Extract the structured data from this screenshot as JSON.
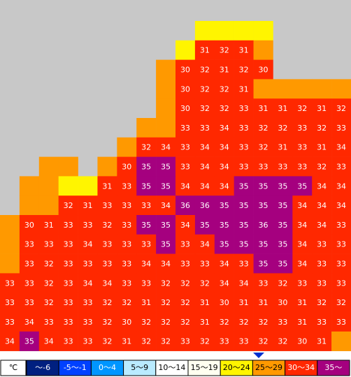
{
  "map": {
    "values": [
      [
        null,
        null,
        null,
        null,
        null,
        null,
        null,
        null,
        null,
        null,
        null,
        null,
        null,
        null,
        null,
        null,
        null,
        null
      ],
      [
        null,
        null,
        null,
        null,
        null,
        null,
        null,
        null,
        null,
        null,
        31,
        32,
        31,
        null,
        null,
        null,
        null,
        null
      ],
      [
        null,
        null,
        null,
        null,
        null,
        null,
        null,
        null,
        null,
        30,
        32,
        31,
        32,
        30,
        null,
        null,
        null,
        null
      ],
      [
        null,
        null,
        null,
        null,
        null,
        null,
        null,
        null,
        null,
        30,
        32,
        32,
        31,
        null,
        null,
        null,
        null,
        null
      ],
      [
        null,
        null,
        null,
        null,
        null,
        null,
        null,
        null,
        null,
        30,
        32,
        32,
        33,
        31,
        31,
        32,
        31,
        32
      ],
      [
        null,
        null,
        null,
        null,
        null,
        null,
        null,
        null,
        null,
        33,
        33,
        34,
        33,
        32,
        32,
        33,
        32,
        33
      ],
      [
        null,
        null,
        null,
        null,
        null,
        null,
        null,
        32,
        34,
        33,
        34,
        34,
        33,
        32,
        31,
        33,
        31,
        34
      ],
      [
        null,
        null,
        null,
        null,
        null,
        null,
        30,
        35,
        35,
        33,
        34,
        34,
        33,
        33,
        33,
        33,
        32,
        33
      ],
      [
        null,
        null,
        null,
        null,
        null,
        31,
        33,
        35,
        35,
        34,
        34,
        34,
        35,
        35,
        35,
        35,
        34,
        34
      ],
      [
        null,
        null,
        null,
        32,
        31,
        33,
        33,
        33,
        34,
        36,
        36,
        35,
        35,
        35,
        35,
        34,
        34,
        34
      ],
      [
        null,
        30,
        31,
        33,
        33,
        32,
        33,
        35,
        35,
        34,
        35,
        35,
        35,
        36,
        35,
        34,
        34,
        33
      ],
      [
        null,
        33,
        33,
        33,
        34,
        33,
        33,
        33,
        35,
        33,
        34,
        35,
        35,
        35,
        35,
        34,
        33,
        33
      ],
      [
        null,
        33,
        32,
        33,
        33,
        33,
        33,
        34,
        34,
        33,
        33,
        34,
        33,
        35,
        35,
        34,
        33,
        33
      ],
      [
        33,
        33,
        32,
        33,
        34,
        34,
        33,
        33,
        32,
        32,
        32,
        34,
        34,
        33,
        32,
        33,
        33,
        33
      ],
      [
        33,
        33,
        32,
        33,
        33,
        32,
        32,
        31,
        32,
        32,
        31,
        30,
        31,
        31,
        30,
        31,
        32,
        32
      ],
      [
        33,
        34,
        33,
        33,
        33,
        32,
        30,
        32,
        32,
        32,
        31,
        32,
        32,
        32,
        33,
        31,
        33,
        33
      ],
      [
        34,
        35,
        34,
        33,
        33,
        32,
        31,
        32,
        32,
        33,
        32,
        33,
        33,
        32,
        32,
        30,
        31,
        null
      ]
    ],
    "fills": [
      [
        null,
        null,
        null,
        null,
        null,
        null,
        null,
        null,
        null,
        null,
        "#fff500",
        "#fff500",
        "#fff500",
        "#fff500",
        null,
        null,
        null,
        null
      ],
      [
        null,
        null,
        null,
        null,
        null,
        null,
        null,
        null,
        null,
        "#fff500",
        "#ff2800",
        "#ff2800",
        "#ff2800",
        "#ff9900",
        null,
        null,
        null,
        null
      ],
      [
        null,
        null,
        null,
        null,
        null,
        null,
        null,
        null,
        "#ff9900",
        "#ff2800",
        "#ff2800",
        "#ff2800",
        "#ff2800",
        "#ff2800",
        null,
        null,
        null,
        null
      ],
      [
        null,
        null,
        null,
        null,
        null,
        null,
        null,
        null,
        "#ff9900",
        "#ff2800",
        "#ff2800",
        "#ff2800",
        "#ff2800",
        "#ff9900",
        "#ff9900",
        "#ff9900",
        "#ff9900",
        "#ff9900"
      ],
      [
        null,
        null,
        null,
        null,
        null,
        null,
        null,
        null,
        "#ff9900",
        "#ff2800",
        "#ff2800",
        "#ff2800",
        "#ff2800",
        "#ff2800",
        "#ff2800",
        "#ff2800",
        "#ff2800",
        "#ff2800"
      ],
      [
        null,
        null,
        null,
        null,
        null,
        null,
        null,
        "#ff9900",
        "#ff9900",
        "#ff2800",
        "#ff2800",
        "#ff2800",
        "#ff2800",
        "#ff2800",
        "#ff2800",
        "#ff2800",
        "#ff2800",
        "#ff2800"
      ],
      [
        null,
        null,
        null,
        null,
        null,
        null,
        "#ff9900",
        "#ff2800",
        "#ff2800",
        "#ff2800",
        "#ff2800",
        "#ff2800",
        "#ff2800",
        "#ff2800",
        "#ff2800",
        "#ff2800",
        "#ff2800",
        "#ff2800"
      ],
      [
        null,
        null,
        "#ff9900",
        "#ff9900",
        null,
        "#ff9900",
        "#ff2800",
        "#a5007f",
        "#a5007f",
        "#ff2800",
        "#ff2800",
        "#ff2800",
        "#ff2800",
        "#ff2800",
        "#ff2800",
        "#ff2800",
        "#ff2800",
        "#ff2800"
      ],
      [
        null,
        "#ff9900",
        "#ff9900",
        "#fff500",
        "#fff500",
        "#ff2800",
        "#ff2800",
        "#a5007f",
        "#a5007f",
        "#ff2800",
        "#ff2800",
        "#ff2800",
        "#a5007f",
        "#a5007f",
        "#a5007f",
        "#a5007f",
        "#ff2800",
        "#ff2800"
      ],
      [
        null,
        "#ff9900",
        "#ff9900",
        "#ff2800",
        "#ff2800",
        "#ff2800",
        "#ff2800",
        "#ff2800",
        "#ff2800",
        "#a5007f",
        "#a5007f",
        "#a5007f",
        "#a5007f",
        "#a5007f",
        "#a5007f",
        "#ff2800",
        "#ff2800",
        "#ff2800"
      ],
      [
        "#ff9900",
        "#ff2800",
        "#ff2800",
        "#ff2800",
        "#ff2800",
        "#ff2800",
        "#ff2800",
        "#a5007f",
        "#a5007f",
        "#ff2800",
        "#a5007f",
        "#a5007f",
        "#a5007f",
        "#a5007f",
        "#a5007f",
        "#ff2800",
        "#ff2800",
        "#ff2800"
      ],
      [
        "#ff9900",
        "#ff2800",
        "#ff2800",
        "#ff2800",
        "#ff2800",
        "#ff2800",
        "#ff2800",
        "#ff2800",
        "#a5007f",
        "#ff2800",
        "#ff2800",
        "#a5007f",
        "#a5007f",
        "#a5007f",
        "#a5007f",
        "#ff2800",
        "#ff2800",
        "#ff2800"
      ],
      [
        "#ff9900",
        "#ff2800",
        "#ff2800",
        "#ff2800",
        "#ff2800",
        "#ff2800",
        "#ff2800",
        "#ff2800",
        "#ff2800",
        "#ff2800",
        "#ff2800",
        "#ff2800",
        "#ff2800",
        "#a5007f",
        "#a5007f",
        "#ff2800",
        "#ff2800",
        "#ff2800"
      ],
      [
        "#ff2800",
        "#ff2800",
        "#ff2800",
        "#ff2800",
        "#ff2800",
        "#ff2800",
        "#ff2800",
        "#ff2800",
        "#ff2800",
        "#ff2800",
        "#ff2800",
        "#ff2800",
        "#ff2800",
        "#ff2800",
        "#ff2800",
        "#ff2800",
        "#ff2800",
        "#ff2800"
      ],
      [
        "#ff2800",
        "#ff2800",
        "#ff2800",
        "#ff2800",
        "#ff2800",
        "#ff2800",
        "#ff2800",
        "#ff2800",
        "#ff2800",
        "#ff2800",
        "#ff2800",
        "#ff2800",
        "#ff2800",
        "#ff2800",
        "#ff2800",
        "#ff2800",
        "#ff2800",
        "#ff2800"
      ],
      [
        "#ff2800",
        "#ff2800",
        "#ff2800",
        "#ff2800",
        "#ff2800",
        "#ff2800",
        "#ff2800",
        "#ff2800",
        "#ff2800",
        "#ff2800",
        "#ff2800",
        "#ff2800",
        "#ff2800",
        "#ff2800",
        "#ff2800",
        "#ff2800",
        "#ff2800",
        "#ff2800"
      ],
      [
        "#ff2800",
        "#a5007f",
        "#ff2800",
        "#ff2800",
        "#ff2800",
        "#ff2800",
        "#ff2800",
        "#ff2800",
        "#ff2800",
        "#ff2800",
        "#ff2800",
        "#ff2800",
        "#ff2800",
        "#ff2800",
        "#ff2800",
        "#ff2800",
        "#ff2800",
        "#ff9900"
      ]
    ]
  },
  "legend": {
    "unit": "℃",
    "items": [
      {
        "label": "〜-6",
        "color": "#002080",
        "text_color": "#ffffff"
      },
      {
        "label": "-5〜-1",
        "color": "#0041ff",
        "text_color": "#ffffff"
      },
      {
        "label": "0〜4",
        "color": "#0096ff",
        "text_color": "#ffffff"
      },
      {
        "label": "5〜9",
        "color": "#b9ebff",
        "text_color": "#000000"
      },
      {
        "label": "10〜14",
        "color": "#ffffff",
        "text_color": "#000000"
      },
      {
        "label": "15〜19",
        "color": "#fffff0",
        "text_color": "#000000"
      },
      {
        "label": "20〜24",
        "color": "#fff500",
        "text_color": "#000000"
      },
      {
        "label": "25〜29",
        "color": "#ff9900",
        "text_color": "#000000"
      },
      {
        "label": "30〜34",
        "color": "#ff2800",
        "text_color": "#ffffff"
      },
      {
        "label": "35〜",
        "color": "#a5007f",
        "text_color": "#ffffff"
      }
    ]
  }
}
